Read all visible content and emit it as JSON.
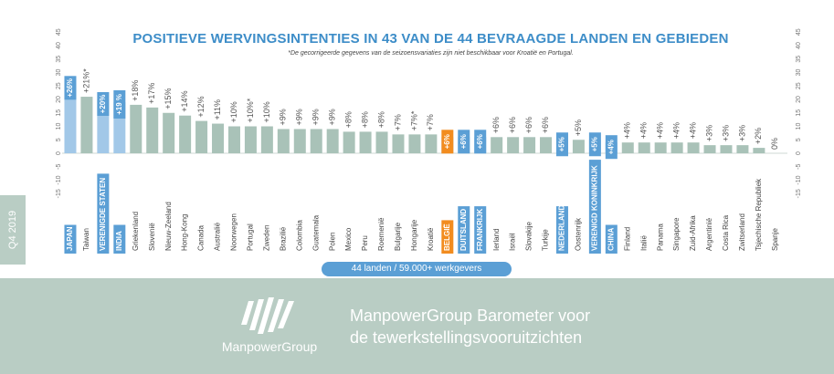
{
  "chart_data": {
    "type": "bar",
    "title": "POSITIEVE WERVINGSINTENTIES IN 43 VAN DE 44 BEVRAAGDE LANDEN EN GEBIEDEN",
    "subtitle": "*De gecorrigeerde gegevens van de seizoensvariaties zijn niet beschikbaar voor Kroatië en Portugal.",
    "ylim": [
      -15,
      45
    ],
    "yticks": [
      45,
      40,
      35,
      30,
      25,
      20,
      15,
      10,
      5,
      0,
      -5,
      -10,
      -15
    ],
    "grid": false,
    "categories": [
      "JAPAN",
      "Taiwan",
      "VERENIGDE STATEN",
      "INDIA",
      "Griekenland",
      "Slovenië",
      "Nieuw-Zeeland",
      "Hong-Kong",
      "Canada",
      "Australië",
      "Noorwegen",
      "Portugal",
      "Zweden",
      "Brazilië",
      "Colombia",
      "Guatemala",
      "Polen",
      "Mexico",
      "Peru",
      "Roemenië",
      "Bulgarije",
      "Hongarije",
      "Kroatië",
      "BELGIË",
      "DUITSLAND",
      "FRANKRIJK",
      "Ierland",
      "Israël",
      "Slovakije",
      "Turkije",
      "NEDERLAND",
      "Oostenrijk",
      "VERENIGD KONINKRIJK",
      "CHINA",
      "Finland",
      "Italië",
      "Panama",
      "Singapore",
      "Zuid-Afrika",
      "Argentinië",
      "Costa Rica",
      "Zwitserland",
      "Tsjechische Republiek",
      "Spanje"
    ],
    "values": [
      26,
      21,
      20,
      19,
      18,
      17,
      15,
      14,
      12,
      11,
      10,
      10,
      10,
      9,
      9,
      9,
      9,
      8,
      8,
      8,
      7,
      7,
      7,
      6,
      6,
      6,
      6,
      6,
      6,
      6,
      5,
      5,
      5,
      4,
      4,
      4,
      4,
      4,
      4,
      3,
      3,
      3,
      2,
      0
    ],
    "labels": [
      "+26%",
      "+21%*",
      "+20%",
      "+19 %",
      "+18%",
      "+17%",
      "+15%",
      "+14%",
      "+12%",
      "+11%",
      "+10%",
      "+10%*",
      "+10%",
      "+9%",
      "+9%",
      "+9%",
      "+9%",
      "+8%",
      "+8%",
      "+8%",
      "+7%",
      "+7%*",
      "+7%",
      "+6%",
      "+6%",
      "+6%",
      "+6%",
      "+6%",
      "+6%",
      "+6%",
      "+5%",
      "+5%",
      "+5%",
      "+4%",
      "+4%",
      "+4%",
      "+4%",
      "+4%",
      "+4%",
      "+3%",
      "+3%",
      "+3%",
      "+2%",
      "0%"
    ],
    "highlight": [
      0,
      2,
      3,
      23,
      24,
      25,
      30,
      32,
      33
    ],
    "highlight_orange": [
      23
    ],
    "colors": {
      "bar": "#a9c2b8",
      "bar_highlight": "#a2c8e8",
      "label_box": "#5b9fd5",
      "label_box_orange": "#f28c1f",
      "axis_text": "#777777",
      "title": "#3d8dc8"
    }
  },
  "side_tab": "Q4 2019",
  "pill": "44 landen / 59.000+ werkgevers",
  "logo": "ManpowerGroup",
  "tagline": [
    "ManpowerGroup Barometer voor",
    "de tewerkstellingsvooruitzichten"
  ]
}
